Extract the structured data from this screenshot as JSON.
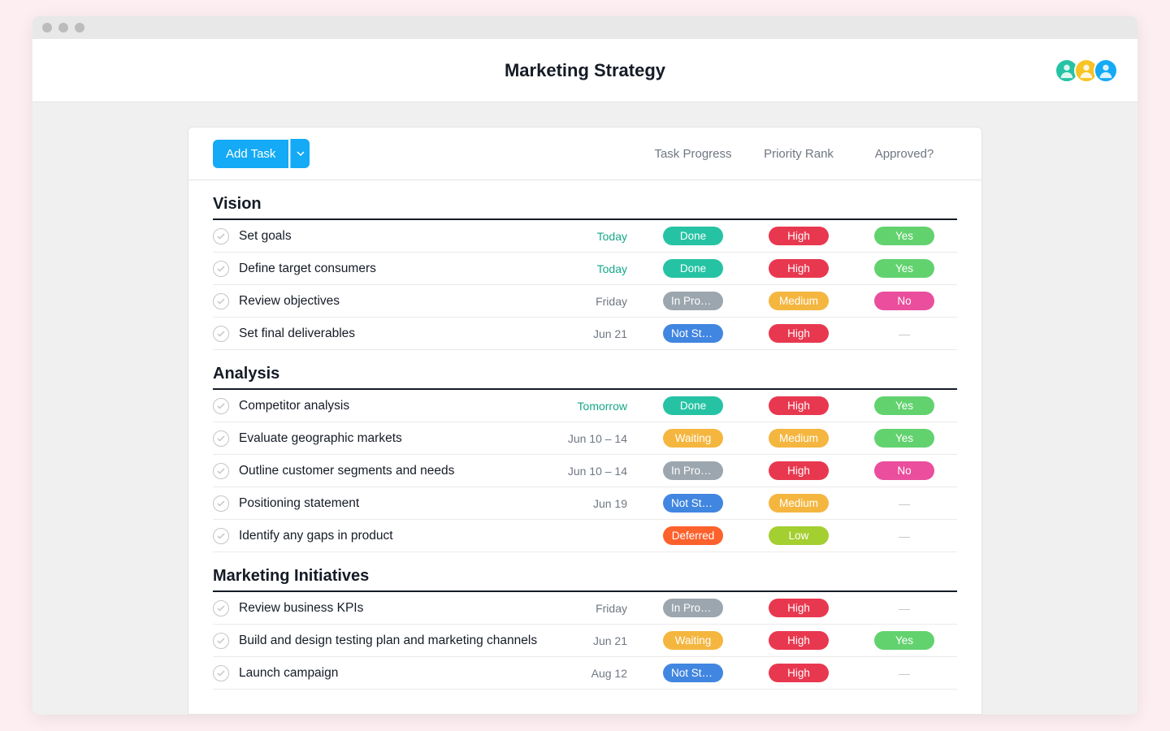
{
  "page": {
    "title": "Marketing Strategy"
  },
  "toolbar": {
    "add_task_label": "Add Task"
  },
  "columns": {
    "progress": "Task Progress",
    "priority": "Priority Rank",
    "approved": "Approved?"
  },
  "avatars": [
    {
      "bg": "#25c3a4"
    },
    {
      "bg": "#f7c325"
    },
    {
      "bg": "#14aaf5"
    }
  ],
  "pill_colors": {
    "Done": "#25c3a4",
    "In Progr…": "#9ca6af",
    "Not Star…": "#4186e0",
    "Waiting": "#f4b63f",
    "Deferred": "#fd612c",
    "High": "#e8384f",
    "Medium": "#f4b63f",
    "Low": "#a4cf30",
    "Yes": "#62d26f",
    "No": "#ea4e9d"
  },
  "sections": [
    {
      "title": "Vision",
      "tasks": [
        {
          "name": "Set goals",
          "due": "Today",
          "due_soon": true,
          "progress": "Done",
          "priority": "High",
          "approved": "Yes"
        },
        {
          "name": "Define target consumers",
          "due": "Today",
          "due_soon": true,
          "progress": "Done",
          "priority": "High",
          "approved": "Yes"
        },
        {
          "name": "Review objectives",
          "due": "Friday",
          "due_soon": false,
          "progress": "In Progr…",
          "priority": "Medium",
          "approved": "No"
        },
        {
          "name": "Set final deliverables",
          "due": "Jun 21",
          "due_soon": false,
          "progress": "Not Star…",
          "priority": "High",
          "approved": ""
        }
      ]
    },
    {
      "title": "Analysis",
      "tasks": [
        {
          "name": "Competitor analysis",
          "due": "Tomorrow",
          "due_soon": true,
          "progress": "Done",
          "priority": "High",
          "approved": "Yes"
        },
        {
          "name": "Evaluate geographic markets",
          "due": "Jun 10 – 14",
          "due_soon": false,
          "progress": "Waiting",
          "priority": "Medium",
          "approved": "Yes"
        },
        {
          "name": "Outline customer segments and needs",
          "due": "Jun 10 – 14",
          "due_soon": false,
          "progress": "In Progr…",
          "priority": "High",
          "approved": "No"
        },
        {
          "name": "Positioning statement",
          "due": "Jun 19",
          "due_soon": false,
          "progress": "Not Star…",
          "priority": "Medium",
          "approved": ""
        },
        {
          "name": "Identify any gaps in product",
          "due": "",
          "due_soon": false,
          "progress": "Deferred",
          "priority": "Low",
          "approved": ""
        }
      ]
    },
    {
      "title": "Marketing Initiatives",
      "tasks": [
        {
          "name": "Review business KPIs",
          "due": "Friday",
          "due_soon": false,
          "progress": "In Progr…",
          "priority": "High",
          "approved": ""
        },
        {
          "name": "Build and design testing plan and marketing channels",
          "due": "Jun 21",
          "due_soon": false,
          "progress": "Waiting",
          "priority": "High",
          "approved": "Yes"
        },
        {
          "name": "Launch campaign",
          "due": "Aug 12",
          "due_soon": false,
          "progress": "Not Star…",
          "priority": "High",
          "approved": ""
        }
      ]
    }
  ]
}
